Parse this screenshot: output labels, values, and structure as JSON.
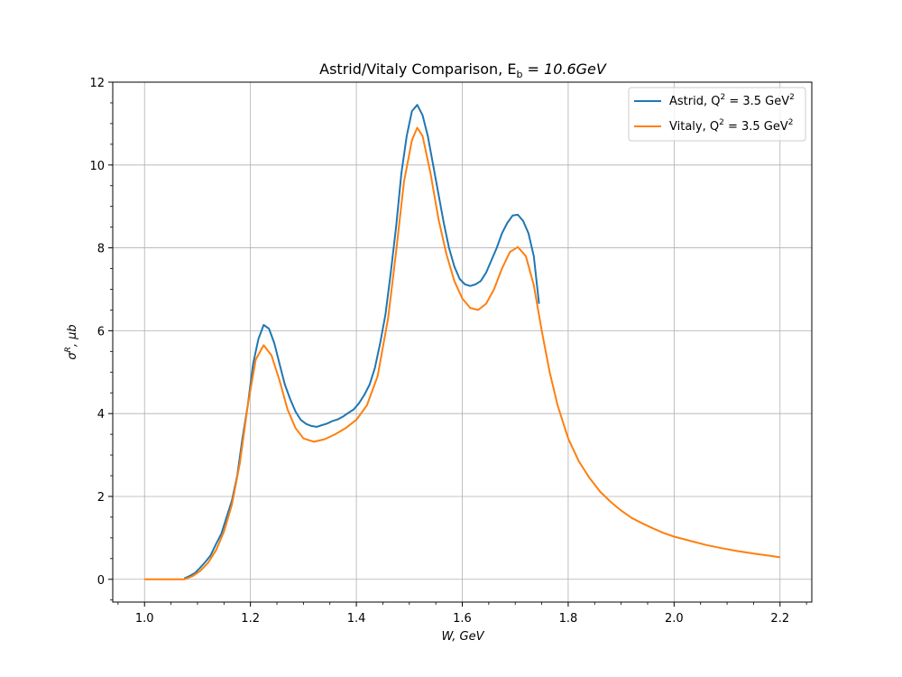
{
  "chart_data": {
    "type": "line",
    "title": "Astrid/Vitaly Comparison, E",
    "title_subscript": "b",
    "title_suffix": " = 10.6GeV",
    "xlabel": "W, GeV",
    "ylabel": "σ",
    "ylabel_superscript": "R",
    "ylabel_suffix": ", μb",
    "xlim": [
      0.94,
      2.26
    ],
    "ylim": [
      -0.55,
      12.0
    ],
    "xticks": [
      1.0,
      1.2,
      1.4,
      1.6,
      1.8,
      2.0,
      2.2
    ],
    "xtick_labels": [
      "1.0",
      "1.2",
      "1.4",
      "1.6",
      "1.8",
      "2.0",
      "2.2"
    ],
    "yticks": [
      0,
      2,
      4,
      6,
      8,
      10,
      12
    ],
    "ytick_labels": [
      "0",
      "2",
      "4",
      "6",
      "8",
      "10",
      "12"
    ],
    "grid": true,
    "legend_position": "top-right",
    "series": [
      {
        "name": "Astrid, Q",
        "name_sup": "2",
        "name_suffix": " = 3.5 GeV",
        "name_suffix_sup": "2",
        "color": "#1f77b4",
        "points": [
          [
            1.075,
            0.02
          ],
          [
            1.085,
            0.08
          ],
          [
            1.095,
            0.15
          ],
          [
            1.105,
            0.28
          ],
          [
            1.115,
            0.42
          ],
          [
            1.125,
            0.58
          ],
          [
            1.135,
            0.85
          ],
          [
            1.145,
            1.1
          ],
          [
            1.155,
            1.5
          ],
          [
            1.165,
            1.9
          ],
          [
            1.175,
            2.5
          ],
          [
            1.185,
            3.4
          ],
          [
            1.195,
            4.2
          ],
          [
            1.205,
            5.2
          ],
          [
            1.215,
            5.8
          ],
          [
            1.225,
            6.14
          ],
          [
            1.235,
            6.05
          ],
          [
            1.245,
            5.7
          ],
          [
            1.255,
            5.2
          ],
          [
            1.265,
            4.7
          ],
          [
            1.275,
            4.35
          ],
          [
            1.285,
            4.05
          ],
          [
            1.295,
            3.85
          ],
          [
            1.305,
            3.75
          ],
          [
            1.315,
            3.7
          ],
          [
            1.325,
            3.68
          ],
          [
            1.335,
            3.72
          ],
          [
            1.345,
            3.76
          ],
          [
            1.355,
            3.82
          ],
          [
            1.365,
            3.86
          ],
          [
            1.375,
            3.93
          ],
          [
            1.385,
            4.02
          ],
          [
            1.395,
            4.1
          ],
          [
            1.405,
            4.25
          ],
          [
            1.415,
            4.45
          ],
          [
            1.425,
            4.7
          ],
          [
            1.435,
            5.1
          ],
          [
            1.445,
            5.7
          ],
          [
            1.455,
            6.4
          ],
          [
            1.465,
            7.4
          ],
          [
            1.475,
            8.5
          ],
          [
            1.485,
            9.8
          ],
          [
            1.495,
            10.7
          ],
          [
            1.505,
            11.3
          ],
          [
            1.515,
            11.45
          ],
          [
            1.525,
            11.2
          ],
          [
            1.535,
            10.7
          ],
          [
            1.545,
            10.0
          ],
          [
            1.555,
            9.3
          ],
          [
            1.565,
            8.6
          ],
          [
            1.575,
            8.0
          ],
          [
            1.585,
            7.55
          ],
          [
            1.595,
            7.25
          ],
          [
            1.605,
            7.12
          ],
          [
            1.615,
            7.08
          ],
          [
            1.625,
            7.12
          ],
          [
            1.635,
            7.2
          ],
          [
            1.645,
            7.4
          ],
          [
            1.655,
            7.7
          ],
          [
            1.665,
            8.0
          ],
          [
            1.675,
            8.35
          ],
          [
            1.685,
            8.6
          ],
          [
            1.695,
            8.78
          ],
          [
            1.705,
            8.8
          ],
          [
            1.715,
            8.65
          ],
          [
            1.725,
            8.35
          ],
          [
            1.735,
            7.8
          ],
          [
            1.745,
            6.65
          ]
        ]
      },
      {
        "name": "Vitaly, Q",
        "name_sup": "2",
        "name_suffix": " = 3.5 GeV",
        "name_suffix_sup": "2",
        "color": "#ff7f0e",
        "points": [
          [
            1.0,
            0.0
          ],
          [
            1.02,
            0.0
          ],
          [
            1.04,
            0.0
          ],
          [
            1.06,
            0.0
          ],
          [
            1.075,
            0.0
          ],
          [
            1.09,
            0.07
          ],
          [
            1.105,
            0.2
          ],
          [
            1.12,
            0.4
          ],
          [
            1.135,
            0.7
          ],
          [
            1.15,
            1.15
          ],
          [
            1.165,
            1.8
          ],
          [
            1.18,
            2.8
          ],
          [
            1.195,
            4.2
          ],
          [
            1.21,
            5.3
          ],
          [
            1.225,
            5.65
          ],
          [
            1.24,
            5.4
          ],
          [
            1.255,
            4.8
          ],
          [
            1.27,
            4.1
          ],
          [
            1.285,
            3.65
          ],
          [
            1.3,
            3.4
          ],
          [
            1.32,
            3.32
          ],
          [
            1.34,
            3.38
          ],
          [
            1.36,
            3.5
          ],
          [
            1.38,
            3.65
          ],
          [
            1.4,
            3.85
          ],
          [
            1.42,
            4.2
          ],
          [
            1.44,
            4.9
          ],
          [
            1.46,
            6.3
          ],
          [
            1.475,
            7.9
          ],
          [
            1.49,
            9.6
          ],
          [
            1.505,
            10.6
          ],
          [
            1.515,
            10.9
          ],
          [
            1.525,
            10.7
          ],
          [
            1.54,
            9.8
          ],
          [
            1.555,
            8.7
          ],
          [
            1.57,
            7.85
          ],
          [
            1.585,
            7.2
          ],
          [
            1.6,
            6.78
          ],
          [
            1.615,
            6.55
          ],
          [
            1.63,
            6.5
          ],
          [
            1.645,
            6.65
          ],
          [
            1.66,
            7.0
          ],
          [
            1.675,
            7.5
          ],
          [
            1.69,
            7.9
          ],
          [
            1.705,
            8.02
          ],
          [
            1.72,
            7.8
          ],
          [
            1.735,
            7.1
          ],
          [
            1.75,
            6.0
          ],
          [
            1.765,
            5.0
          ],
          [
            1.78,
            4.2
          ],
          [
            1.8,
            3.4
          ],
          [
            1.82,
            2.85
          ],
          [
            1.84,
            2.45
          ],
          [
            1.86,
            2.12
          ],
          [
            1.88,
            1.87
          ],
          [
            1.9,
            1.66
          ],
          [
            1.92,
            1.48
          ],
          [
            1.94,
            1.35
          ],
          [
            1.96,
            1.23
          ],
          [
            1.98,
            1.12
          ],
          [
            2.0,
            1.03
          ],
          [
            2.03,
            0.93
          ],
          [
            2.06,
            0.83
          ],
          [
            2.09,
            0.75
          ],
          [
            2.12,
            0.68
          ],
          [
            2.15,
            0.62
          ],
          [
            2.18,
            0.57
          ],
          [
            2.2,
            0.53
          ]
        ]
      }
    ]
  }
}
